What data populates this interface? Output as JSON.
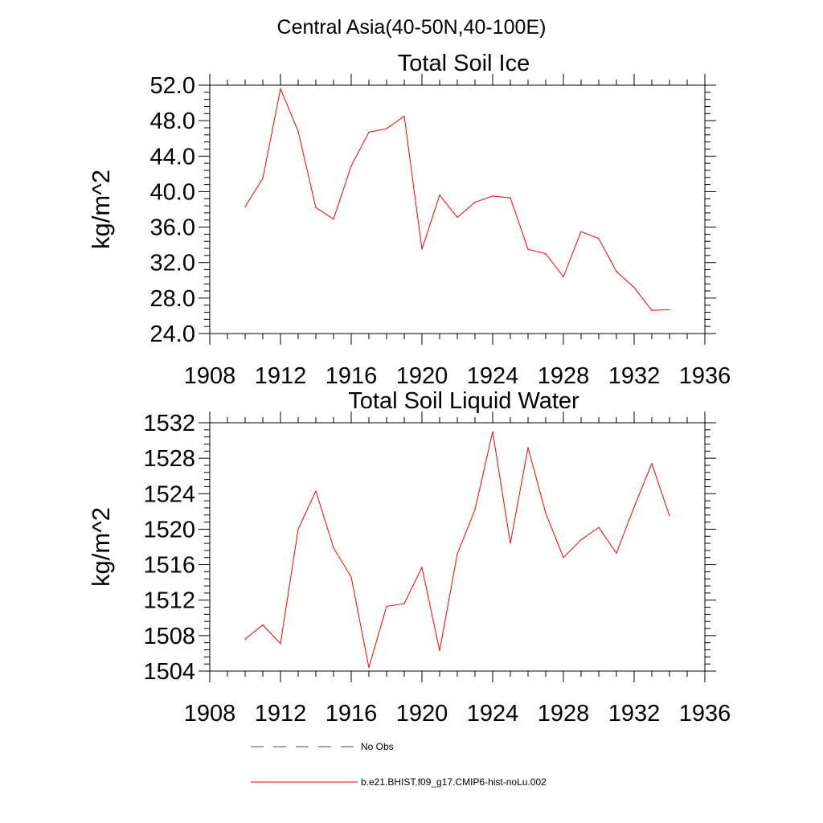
{
  "figure": {
    "title": "Central Asia(40-50N,40-100E)"
  },
  "chart_data": [
    {
      "type": "line",
      "title": "Total Soil Ice",
      "xlabel": "",
      "ylabel": "kg/m^2",
      "xlim": [
        1908,
        1936
      ],
      "ylim": [
        24,
        52
      ],
      "x_ticks": [
        1908,
        1912,
        1916,
        1920,
        1924,
        1928,
        1932,
        1936
      ],
      "x_tick_labels": [
        "1908",
        "1912",
        "1916",
        "1920",
        "1924",
        "1928",
        "1932",
        "1936"
      ],
      "y_ticks": [
        24,
        28,
        32,
        36,
        40,
        44,
        48,
        52
      ],
      "y_tick_labels": [
        "24.0",
        "28.0",
        "32.0",
        "36.0",
        "40.0",
        "44.0",
        "48.0",
        "52.0"
      ],
      "grid": false,
      "series": [
        {
          "name": "b.e21.BHIST.f09_g17.CMIP6-hist-noLu.002",
          "color": "#ff0000",
          "x": [
            1910,
            1911,
            1912,
            1913,
            1914,
            1915,
            1916,
            1917,
            1918,
            1919,
            1920,
            1921,
            1922,
            1923,
            1924,
            1925,
            1926,
            1927,
            1928,
            1929,
            1930,
            1931,
            1932,
            1933,
            1934
          ],
          "y": [
            38.3,
            41.5,
            51.6,
            46.8,
            38.2,
            36.9,
            42.9,
            46.7,
            47.1,
            48.5,
            33.5,
            39.6,
            37.1,
            38.8,
            39.5,
            39.3,
            33.5,
            33.0,
            30.4,
            35.5,
            34.7,
            31.0,
            29.2,
            26.6,
            26.7
          ]
        }
      ]
    },
    {
      "type": "line",
      "title": "Total Soil Liquid Water",
      "xlabel": "",
      "ylabel": "kg/m^2",
      "xlim": [
        1908,
        1936
      ],
      "ylim": [
        1504,
        1532
      ],
      "x_ticks": [
        1908,
        1912,
        1916,
        1920,
        1924,
        1928,
        1932,
        1936
      ],
      "x_tick_labels": [
        "1908",
        "1912",
        "1916",
        "1920",
        "1924",
        "1928",
        "1932",
        "1936"
      ],
      "y_ticks": [
        1504,
        1508,
        1512,
        1516,
        1520,
        1524,
        1528,
        1532
      ],
      "y_tick_labels": [
        "1504",
        "1508",
        "1512",
        "1516",
        "1520",
        "1524",
        "1528",
        "1532"
      ],
      "grid": false,
      "series": [
        {
          "name": "b.e21.BHIST.f09_g17.CMIP6-hist-noLu.002",
          "color": "#ff0000",
          "x": [
            1910,
            1911,
            1912,
            1913,
            1914,
            1915,
            1916,
            1917,
            1918,
            1919,
            1920,
            1921,
            1922,
            1923,
            1924,
            1925,
            1926,
            1927,
            1928,
            1929,
            1930,
            1931,
            1932,
            1933,
            1934
          ],
          "y": [
            1507.6,
            1509.2,
            1507.1,
            1520.0,
            1524.3,
            1517.9,
            1514.6,
            1504.4,
            1511.3,
            1511.6,
            1515.7,
            1506.3,
            1517.2,
            1522.2,
            1531.0,
            1518.4,
            1529.2,
            1521.8,
            1516.8,
            1518.8,
            1520.2,
            1517.3,
            1522.5,
            1527.4,
            1521.5
          ]
        }
      ]
    }
  ],
  "legend": {
    "placement": "bottom",
    "items": [
      {
        "label": "No Obs",
        "style": "dashed",
        "color": "#3d4a66"
      },
      {
        "label": "b.e21.BHIST.f09_g17.CMIP6-hist-noLu.002",
        "style": "solid",
        "color": "#ff0000"
      }
    ]
  }
}
